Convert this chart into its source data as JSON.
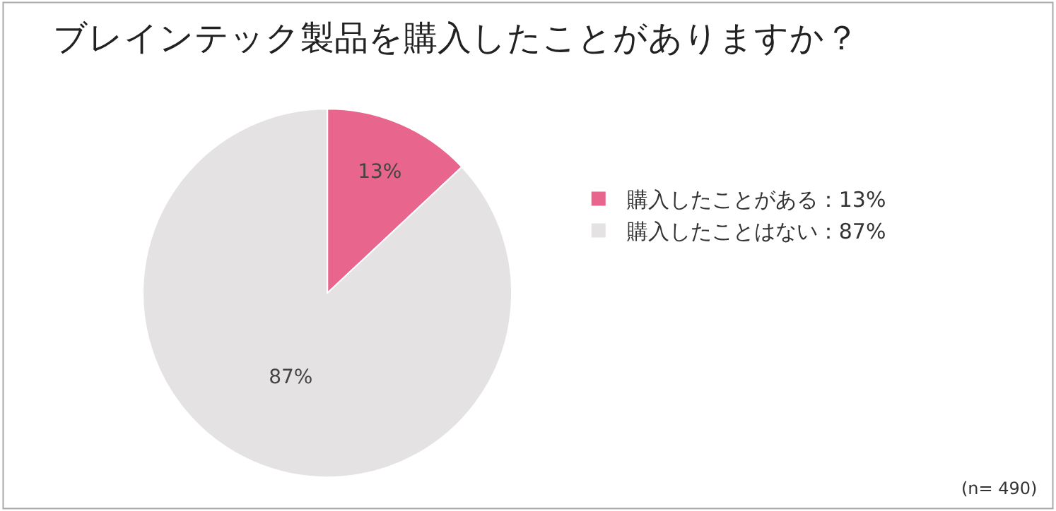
{
  "chart_data": {
    "type": "pie",
    "title": "ブレインテック製品を購入したことがありますか？",
    "categories": [
      "購入したことがある：13%",
      "購入したことはない：87%"
    ],
    "values": [
      13,
      87
    ],
    "colors": [
      "#e8658e",
      "#e5e2e3"
    ],
    "value_labels": [
      "13%",
      "87%"
    ],
    "legend": "right",
    "annotations": [
      "(n= 490)"
    ]
  }
}
